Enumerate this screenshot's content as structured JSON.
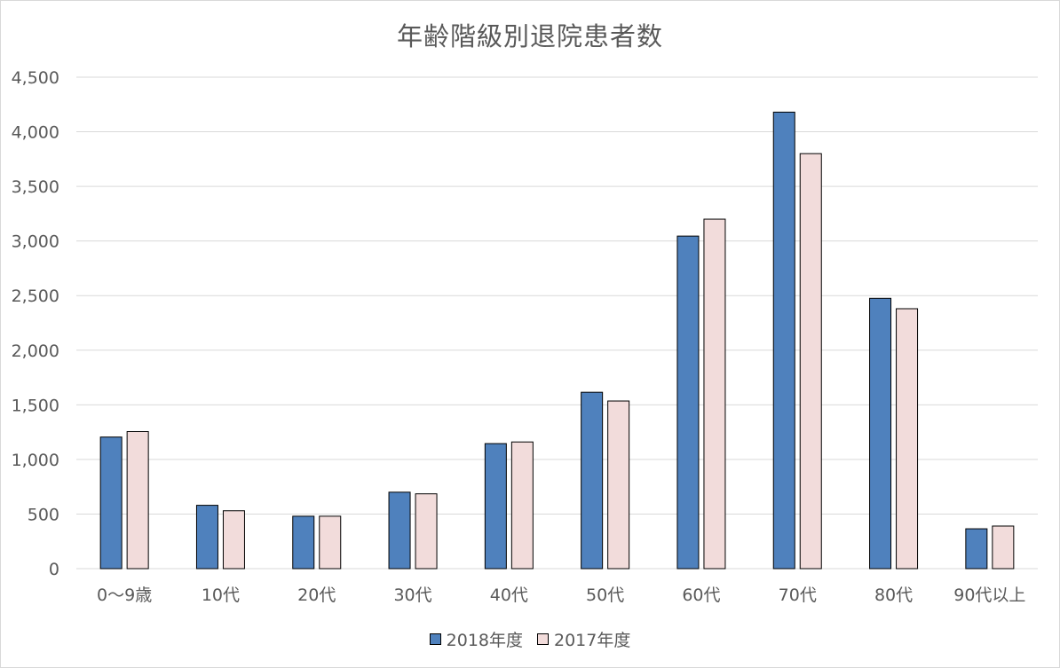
{
  "chart_data": {
    "type": "bar",
    "title": "年齢階級別退院患者数",
    "categories": [
      "0〜9歳",
      "10代",
      "20代",
      "30代",
      "40代",
      "50代",
      "60代",
      "70代",
      "80代",
      "90代以上"
    ],
    "series": [
      {
        "name": "2018年度",
        "color": "#4f81bd",
        "values": [
          1205,
          580,
          480,
          700,
          1145,
          1615,
          3045,
          4180,
          2475,
          365
        ]
      },
      {
        "name": "2017年度",
        "color": "#f2dcdb",
        "values": [
          1255,
          530,
          480,
          685,
          1160,
          1535,
          3200,
          3800,
          2380,
          390
        ]
      }
    ],
    "yticks": [
      "0",
      "500",
      "1,000",
      "1,500",
      "2,000",
      "2,500",
      "3,000",
      "3,500",
      "4,000",
      "4,500"
    ],
    "ylim": [
      0,
      4500
    ],
    "grid": true,
    "legend_position": "bottom"
  }
}
